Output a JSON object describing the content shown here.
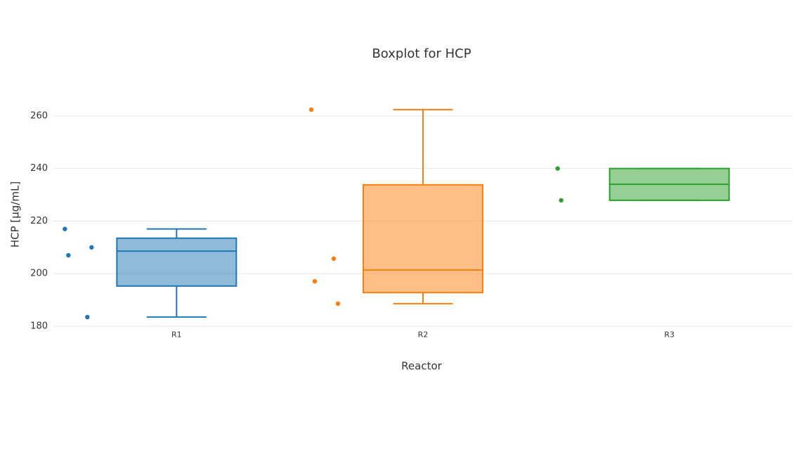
{
  "chart_data": {
    "type": "box",
    "title": "Boxplot for HCP",
    "x_label": "Reactor",
    "y_label": "HCP [µg/mL]",
    "categories": [
      "R1",
      "R2",
      "R3"
    ],
    "boxes": [
      {
        "color": "#1f77b4",
        "points": [
          217,
          207,
          210,
          183.5
        ],
        "whisker_low": 183.5,
        "q1": 195.3,
        "median": 208.6,
        "q3": 213.5,
        "whisker_high": 217
      },
      {
        "color": "#ff7f0e",
        "points": [
          262.4,
          197.1,
          188.6,
          205.7
        ],
        "whisker_low": 188.6,
        "q1": 192.8,
        "median": 201.4,
        "q3": 233.8,
        "whisker_high": 262.4
      },
      {
        "color": "#2ca02c",
        "points": [
          240,
          227.9
        ],
        "whisker_low": 227.9,
        "q1": 227.9,
        "median": 234,
        "q3": 240,
        "whisker_high": 240
      }
    ],
    "ylim": [
      178,
      272
    ],
    "yticks": [
      180,
      200,
      220,
      240,
      260
    ],
    "grid": true
  }
}
